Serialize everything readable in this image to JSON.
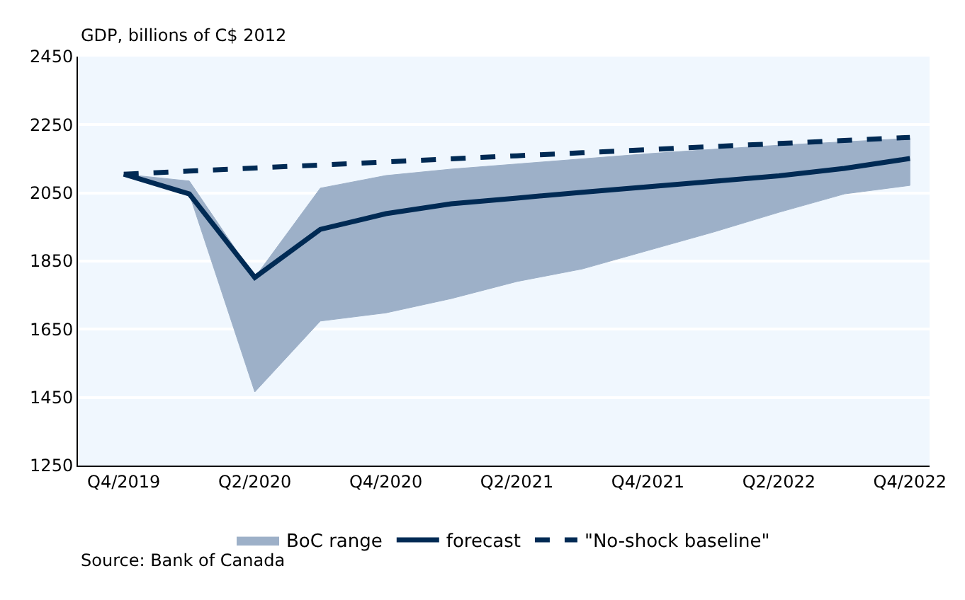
{
  "chart_data": {
    "type": "line",
    "ylabel": "GDP, billions of C$ 2012",
    "categories": [
      "Q4/2019",
      null,
      "Q2/2020",
      null,
      "Q4/2020",
      null,
      "Q2/2021",
      null,
      "Q4/2021",
      null,
      "Q2/2022",
      null,
      "Q4/2022"
    ],
    "series": [
      {
        "name": "BoC range",
        "color": "#9db0c8",
        "values": [
          null,
          null,
          null,
          null,
          null,
          null,
          null,
          null,
          null,
          null,
          null,
          null,
          null
        ],
        "lower": [
          2105,
          2047,
          1466,
          1674,
          1698,
          1740,
          1790,
          1827,
          1881,
          1935,
          1993,
          2047,
          2072
        ],
        "upper": [
          2105,
          2085,
          1802,
          2064,
          2101,
          2120,
          2135,
          2150,
          2165,
          2178,
          2190,
          2200,
          2210
        ]
      },
      {
        "name": "forecast",
        "color": "#002a54",
        "line_style": "solid",
        "values": [
          2105,
          2047,
          1802,
          1943,
          1989,
          2018,
          2035,
          2052,
          2068,
          2084,
          2100,
          2122,
          2151
        ]
      },
      {
        "name": "\"No-shock baseline\"",
        "color": "#002a54",
        "line_style": "dashed",
        "values": [
          2105,
          2114,
          2123,
          2132,
          2141,
          2150,
          2159,
          2168,
          2177,
          2186,
          2195,
          2204,
          2213
        ]
      }
    ],
    "ylim": [
      1250,
      2450
    ],
    "yticks": [
      1250,
      1450,
      1650,
      1850,
      2050,
      2250,
      2450
    ],
    "grid": "y",
    "legend": "bottom",
    "marker": "none",
    "annotations": [
      "Source: Bank of Canada"
    ]
  }
}
